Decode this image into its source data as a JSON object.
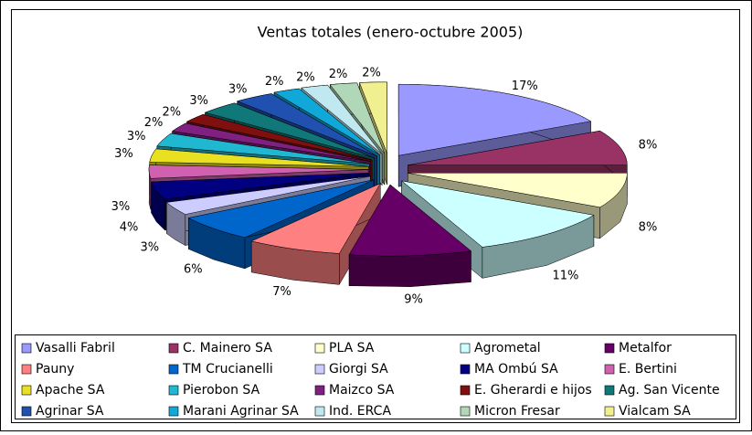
{
  "chart_data": {
    "type": "pie3d",
    "title": "Ventas totales (enero-octubre 2005)",
    "categories": [
      "Vasalli Fabril",
      "C. Mainero SA",
      "PLA SA",
      "Agrometal",
      "Metalfor",
      "Pauny",
      "TM Crucianelli",
      "Giorgi SA",
      "MA Ombú SA",
      "E. Bertini",
      "Apache SA",
      "Pierobon SA",
      "Maizco SA",
      "E. Gherardi e hijos",
      "Ag. San Vicente",
      "Agrinar SA",
      "Marani Agrinar SA",
      "Ind. ERCA",
      "Micron Fresar",
      "Vialcam SA"
    ],
    "values": [
      17,
      8,
      8,
      11,
      9,
      7,
      6,
      3,
      4,
      3,
      3,
      3,
      2,
      2,
      3,
      3,
      2,
      2,
      2,
      2
    ],
    "value_labels": [
      "17%",
      "8%",
      "8%",
      "11%",
      "9%",
      "7%",
      "6%",
      "3%",
      "4%",
      "3%",
      "3%",
      "3%",
      "2%",
      "2%",
      "3%",
      "3%",
      "2%",
      "2%",
      "2%",
      "2%"
    ],
    "colors": [
      "#9999ff",
      "#993366",
      "#ffffcc",
      "#ccffff",
      "#660066",
      "#ff8080",
      "#0066cc",
      "#ccccff",
      "#000080",
      "#d060b0",
      "#e8e020",
      "#20b8d0",
      "#802080",
      "#801010",
      "#107878",
      "#2050b0",
      "#10a8d8",
      "#c0e8f0",
      "#b0d8b8",
      "#f0f090"
    ],
    "legend": "bottom"
  }
}
